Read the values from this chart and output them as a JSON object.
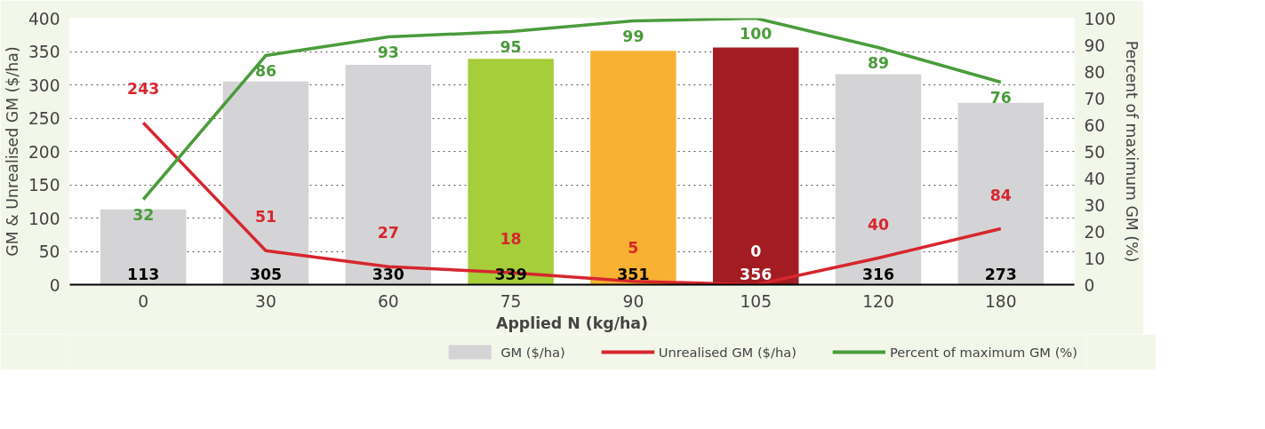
{
  "chart_data": {
    "type": "bar",
    "xlabel": "Applied N (kg/ha)",
    "ylabel": "GM & Unrealised GM ($/ha)",
    "y2label": "Percent of maximum GM (%)",
    "categories": [
      "0",
      "30",
      "60",
      "75",
      "90",
      "105",
      "120",
      "180"
    ],
    "series": [
      {
        "name": "GM ($/ha)",
        "colors": [
          "#d4d4d6",
          "#d4d4d6",
          "#d4d4d6",
          "#a6cd3a",
          "#f8b133",
          "#a21c22",
          "#d4d4d6",
          "#d4d4d6"
        ],
        "values": [
          113,
          305,
          330,
          339,
          351,
          356,
          316,
          273
        ]
      },
      {
        "name": "Unrealised GM ($/ha)",
        "type": "line",
        "color": "#d7262e",
        "values": [
          243,
          51,
          27,
          18,
          5,
          0,
          40,
          84
        ]
      },
      {
        "name": "Percent of maximum GM (%)",
        "type": "line",
        "axis": "y2",
        "color": "#4a9c3b",
        "values": [
          32,
          86,
          93,
          95,
          99,
          100,
          89,
          76
        ]
      }
    ],
    "ylim": [
      0,
      400
    ],
    "yticks": [
      0,
      50,
      100,
      150,
      200,
      250,
      300,
      350,
      400
    ],
    "y2lim": [
      0,
      100
    ],
    "y2ticks": [
      0,
      10,
      20,
      30,
      40,
      50,
      60,
      70,
      80,
      90,
      100
    ],
    "grid": "y",
    "legend": "bottom",
    "data_labels": true,
    "line_style": "solid"
  }
}
